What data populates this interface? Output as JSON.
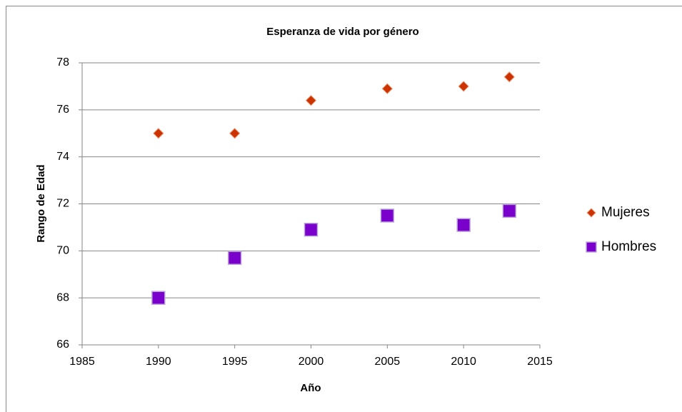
{
  "chart_data": {
    "type": "scatter",
    "title": "Esperanza de vida por género",
    "x_label": "Año",
    "y_label": "Rango de Edad",
    "series": [
      {
        "name": "Mujeres",
        "color": "#cc3300",
        "marker": "diamond",
        "x": [
          1990,
          1995,
          2000,
          2005,
          2010,
          2013
        ],
        "values": [
          75,
          75,
          76.4,
          76.9,
          77.0,
          77.4
        ]
      },
      {
        "name": "Hombres",
        "color": "#7a00cc",
        "marker": "square",
        "x": [
          1990,
          1995,
          2000,
          2005,
          2010,
          2013
        ],
        "values": [
          68,
          69.7,
          70.9,
          71.5,
          71.1,
          71.7
        ]
      }
    ],
    "xlim": [
      1985,
      2015
    ],
    "xticks": [
      1985,
      1990,
      1995,
      2000,
      2005,
      2010,
      2015
    ],
    "ylim": [
      66,
      78
    ],
    "yticks": [
      66,
      68,
      70,
      72,
      74,
      76,
      78
    ],
    "grid": true,
    "legend": "right"
  }
}
